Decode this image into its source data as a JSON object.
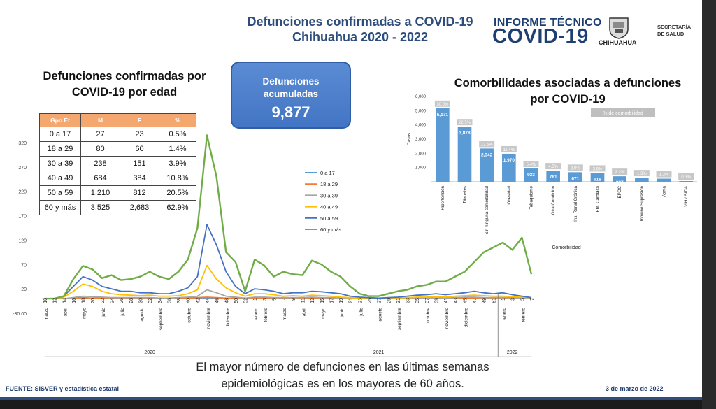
{
  "header": {
    "title_line1": "Defunciones confirmadas a COVID-19",
    "title_line2": "Chihuahua 2020 - 2022",
    "brand_top": "INFORME TÉCNICO",
    "brand_big": "COVID-19",
    "state_label": "CHIHUAHUA",
    "secretaria_line1": "SECRETARÍA",
    "secretaria_line2": "DE SALUD"
  },
  "age_section": {
    "heading_line1": "Defunciones confirmadas por",
    "heading_line2": "COVID-19 por edad"
  },
  "kpi": {
    "label_line1": "Defunciones",
    "label_line2": "acumuladas",
    "value": "9,877"
  },
  "comorbidity_section": {
    "heading_line1": "Comorbilidades asociadas a defunciones",
    "heading_line2": "por COVID-19"
  },
  "footer": {
    "note_line1": "El mayor número de defunciones en las últimas semanas",
    "note_line2": "epidemiológicas es en los mayores de 60 años.",
    "source": "FUENTE: SISVER y estadística estatal",
    "date": "3 de marzo de 2022"
  },
  "chart_data": [
    {
      "type": "table",
      "columns": [
        "Gpo Et",
        "M",
        "F",
        "%"
      ],
      "rows": [
        [
          "0 a 17",
          "27",
          "23",
          "0.5%"
        ],
        [
          "18 a 29",
          "80",
          "60",
          "1.4%"
        ],
        [
          "30 a 39",
          "238",
          "151",
          "3.9%"
        ],
        [
          "40 a 49",
          "684",
          "384",
          "10.8%"
        ],
        [
          "50 a 59",
          "1,210",
          "812",
          "20.5%"
        ],
        [
          "60 y más",
          "3,525",
          "2,683",
          "62.9%"
        ]
      ]
    },
    {
      "type": "bar",
      "ylabel": "Casos",
      "yticks": [
        "6,000",
        "5,000",
        "4,000",
        "3,000",
        "2,000",
        "1,000"
      ],
      "ylim": [
        0,
        6000
      ],
      "legend": "% de comorbilidad",
      "xlabel": "Comorbilidad",
      "categories": [
        "Hipertensión",
        "Diabetes",
        "Sin ninguna comorbilidad",
        "Obesidad",
        "Tabaquismo",
        "Otra Condición",
        "Ins. Renal Crónica",
        "Enf. Cardiaca",
        "EPOC",
        "Inmuno Supresión",
        "Asma",
        "VIH / SIDA"
      ],
      "values": [
        5171,
        3878,
        2342,
        1970,
        933,
        781,
        671,
        618,
        387,
        290,
        220,
        50
      ],
      "value_labels": [
        "5,171",
        "3,878",
        "2,342",
        "1,970",
        "933",
        "781",
        "671",
        "618",
        "387",
        "",
        "",
        ""
      ],
      "percent_labels": [
        "30.0%",
        "22.5%",
        "13.6%",
        "11.4%",
        "5.4%",
        "4.5%",
        "3.9%",
        "3.6%",
        "2.2%",
        "1.3%",
        "1.2%",
        "0.3%"
      ],
      "bar_color": "#5b9bd5"
    },
    {
      "type": "line",
      "yticks": [
        "320",
        "270",
        "220",
        "170",
        "120",
        "70",
        "20",
        "-30.00"
      ],
      "ylim": [
        -30,
        340
      ],
      "x_week_labels": [
        "10",
        "12",
        "14",
        "16",
        "18",
        "20",
        "22",
        "24",
        "26",
        "28",
        "30",
        "32",
        "34",
        "36",
        "38",
        "40",
        "42",
        "44",
        "46",
        "48",
        "50",
        "52",
        "1",
        "3",
        "5",
        "7",
        "9",
        "11",
        "13",
        "15",
        "17",
        "19",
        "21",
        "23",
        "25",
        "27",
        "29",
        "31",
        "33",
        "35",
        "37",
        "39",
        "41",
        "43",
        "45",
        "47",
        "49",
        "51",
        "1",
        "3",
        "5",
        "7"
      ],
      "month_labels": [
        {
          "label": "marzo",
          "week_index": 0
        },
        {
          "label": "abril",
          "week_index": 2
        },
        {
          "label": "mayo",
          "week_index": 4
        },
        {
          "label": "junio",
          "week_index": 6
        },
        {
          "label": "julio",
          "week_index": 8
        },
        {
          "label": "agosto",
          "week_index": 10
        },
        {
          "label": "septiembre",
          "week_index": 12
        },
        {
          "label": "octubre",
          "week_index": 15
        },
        {
          "label": "noviembre",
          "week_index": 17
        },
        {
          "label": "diciembre",
          "week_index": 19
        },
        {
          "label": "enero",
          "week_index": 22
        },
        {
          "label": "febrero",
          "week_index": 23
        },
        {
          "label": "marzo",
          "week_index": 25
        },
        {
          "label": "abril",
          "week_index": 27
        },
        {
          "label": "mayo",
          "week_index": 29
        },
        {
          "label": "junio",
          "week_index": 31
        },
        {
          "label": "julio",
          "week_index": 33
        },
        {
          "label": "agosto",
          "week_index": 35
        },
        {
          "label": "septiembre",
          "week_index": 37
        },
        {
          "label": "octubre",
          "week_index": 40
        },
        {
          "label": "noviembre",
          "week_index": 42
        },
        {
          "label": "diciembre",
          "week_index": 44
        },
        {
          "label": "enero",
          "week_index": 48
        },
        {
          "label": "febrero",
          "week_index": 50
        }
      ],
      "year_labels": [
        {
          "label": "2020",
          "week_index": 11
        },
        {
          "label": "2021",
          "week_index": 35
        },
        {
          "label": "2022",
          "week_index": 49
        }
      ],
      "series": [
        {
          "name": "0 a 17",
          "color": "#5b9bd5",
          "values": [
            0,
            0,
            0,
            0,
            0,
            0,
            0,
            0,
            0,
            0,
            0,
            0,
            0,
            0,
            0,
            0,
            0,
            2,
            1,
            0,
            0,
            0,
            0,
            0,
            0,
            0,
            0,
            0,
            0,
            0,
            0,
            0,
            0,
            0,
            0,
            0,
            0,
            0,
            0,
            0,
            0,
            0,
            0,
            0,
            0,
            1,
            0,
            0,
            0,
            0,
            0,
            0
          ]
        },
        {
          "name": "18 a 29",
          "color": "#ed7d31",
          "values": [
            0,
            0,
            0,
            1,
            2,
            1,
            1,
            1,
            0,
            1,
            0,
            1,
            0,
            0,
            1,
            1,
            2,
            3,
            2,
            1,
            1,
            0,
            1,
            1,
            1,
            0,
            1,
            1,
            1,
            1,
            0,
            0,
            0,
            0,
            0,
            0,
            0,
            0,
            0,
            0,
            0,
            0,
            0,
            1,
            1,
            1,
            0,
            1,
            1,
            1,
            0,
            0
          ]
        },
        {
          "name": "30 a 39",
          "color": "#a5a5a5",
          "values": [
            0,
            0,
            0,
            2,
            5,
            4,
            3,
            2,
            2,
            2,
            2,
            2,
            1,
            1,
            2,
            3,
            5,
            18,
            12,
            5,
            3,
            1,
            3,
            3,
            2,
            2,
            2,
            2,
            3,
            2,
            2,
            1,
            0,
            1,
            0,
            0,
            0,
            1,
            0,
            1,
            1,
            1,
            1,
            2,
            3,
            3,
            2,
            2,
            2,
            2,
            1,
            0
          ]
        },
        {
          "name": "40 a 49",
          "color": "#ffc000",
          "values": [
            0,
            0,
            3,
            15,
            30,
            25,
            15,
            10,
            8,
            7,
            6,
            7,
            5,
            5,
            6,
            10,
            18,
            68,
            40,
            22,
            12,
            5,
            10,
            10,
            8,
            5,
            6,
            5,
            7,
            6,
            5,
            3,
            2,
            1,
            1,
            1,
            1,
            2,
            2,
            3,
            3,
            4,
            3,
            5,
            6,
            7,
            6,
            5,
            5,
            4,
            3,
            2
          ]
        },
        {
          "name": "50 a 59",
          "color": "#4472c4",
          "values": [
            0,
            0,
            5,
            25,
            45,
            38,
            25,
            20,
            15,
            15,
            12,
            12,
            10,
            10,
            15,
            22,
            45,
            152,
            110,
            55,
            25,
            10,
            20,
            18,
            15,
            10,
            12,
            12,
            15,
            14,
            12,
            10,
            5,
            3,
            2,
            1,
            2,
            3,
            5,
            7,
            8,
            10,
            8,
            10,
            12,
            15,
            12,
            10,
            12,
            8,
            5,
            2
          ]
        },
        {
          "name": "60 y más",
          "color": "#70ad47",
          "values": [
            0,
            0,
            5,
            40,
            67,
            60,
            42,
            48,
            38,
            40,
            45,
            55,
            45,
            40,
            55,
            80,
            145,
            335,
            250,
            95,
            75,
            15,
            80,
            68,
            45,
            55,
            50,
            48,
            78,
            70,
            55,
            45,
            25,
            10,
            5,
            5,
            10,
            15,
            18,
            25,
            28,
            35,
            35,
            45,
            55,
            75,
            95,
            105,
            115,
            100,
            125,
            50
          ]
        }
      ]
    }
  ]
}
